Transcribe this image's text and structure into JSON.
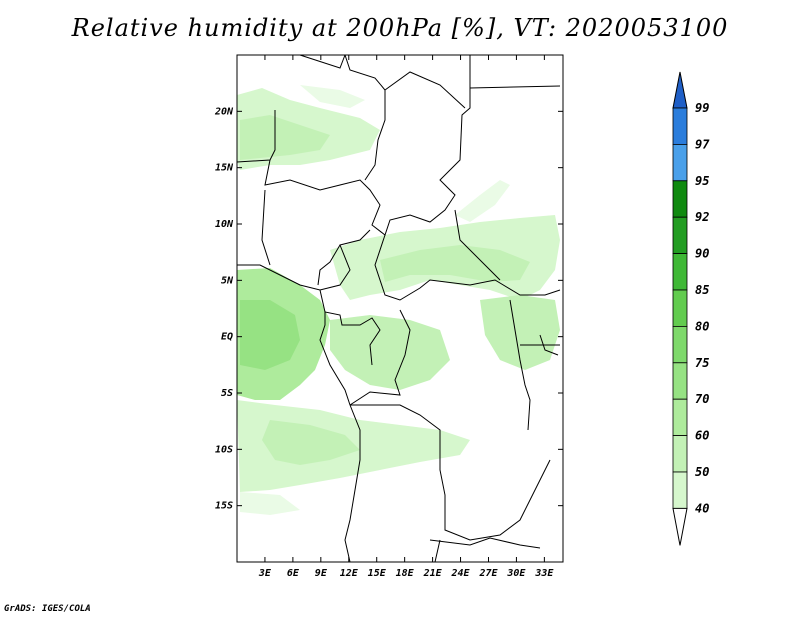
{
  "title": "Relative humidity at 200hPa [%], VT: 2020053100",
  "credit": "GrADS: IGES/COLA",
  "map": {
    "lat_labels": [
      "20N",
      "15N",
      "10N",
      "5N",
      "EQ",
      "5S",
      "10S",
      "15S"
    ],
    "lon_labels": [
      "3E",
      "6E",
      "9E",
      "12E",
      "15E",
      "18E",
      "21E",
      "24E",
      "27E",
      "30E",
      "33E"
    ],
    "lat_range": [
      -20,
      25
    ],
    "lon_range": [
      0,
      35
    ]
  },
  "colorbar": {
    "labels": [
      "40",
      "50",
      "60",
      "70",
      "75",
      "80",
      "85",
      "90",
      "92",
      "95",
      "97",
      "99"
    ],
    "colors": [
      "#eafbe6",
      "#d6f7cd",
      "#c3f1b6",
      "#aeeb9c",
      "#96e283",
      "#7ed96b",
      "#62cc4f",
      "#3fb836",
      "#239d22",
      "#108a10",
      "#4aa0ea",
      "#2b7ddc",
      "#1f5fc7"
    ]
  }
}
